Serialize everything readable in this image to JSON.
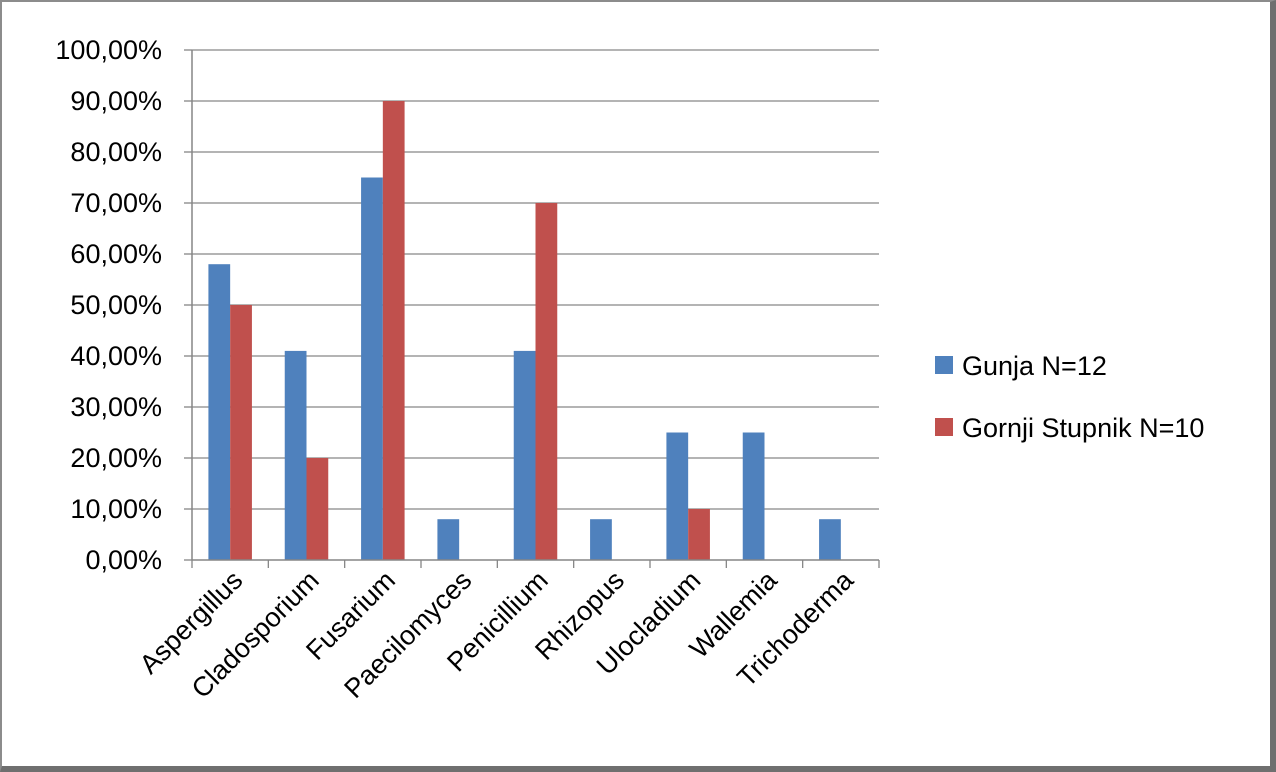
{
  "chart_data": {
    "type": "bar",
    "categories": [
      "Aspergillus",
      "Cladosporium",
      "Fusarium",
      "Paecilomyces",
      "Penicillium",
      "Rhizopus",
      "Ulocladium",
      "Wallemia",
      "Trichoderma"
    ],
    "series": [
      {
        "name": "Gunja N=12",
        "color": "#4f81bd",
        "values": [
          58,
          41,
          75,
          8,
          41,
          8,
          25,
          25,
          8
        ]
      },
      {
        "name": "Gornji Stupnik N=10",
        "color": "#c0504d",
        "values": [
          50,
          20,
          90,
          0,
          70,
          0,
          10,
          0,
          0
        ]
      }
    ],
    "y_ticks": [
      "0,00%",
      "10,00%",
      "20,00%",
      "30,00%",
      "40,00%",
      "50,00%",
      "60,00%",
      "70,00%",
      "80,00%",
      "90,00%",
      "100,00%"
    ],
    "ylim": [
      0,
      100
    ],
    "grid": true,
    "legend_position": "right"
  }
}
